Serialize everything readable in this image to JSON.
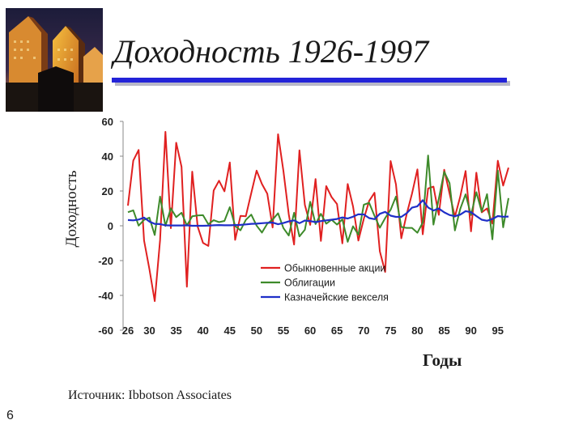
{
  "slide": {
    "title": "Доходность 1926-1997",
    "source": "Источник: Ibbotson Associates",
    "page_number": "6"
  },
  "colors": {
    "stocks": "#e02020",
    "bonds": "#3d8a2a",
    "bills": "#1f2fc8",
    "title_rule": "#2323d8"
  },
  "chart_data": {
    "type": "line",
    "ylabel": "Доходность",
    "xlabel": "Годы",
    "ylim": [
      -60,
      60
    ],
    "xlim": [
      1926,
      1997
    ],
    "y_ticks": [
      "60",
      "40",
      "20",
      "0",
      "-20",
      "-40",
      "-60"
    ],
    "x_ticks": [
      "26",
      "30",
      "35",
      "40",
      "45",
      "50",
      "55",
      "60",
      "65",
      "70",
      "75",
      "80",
      "85",
      "90",
      "95"
    ],
    "legend_position": "lower-right",
    "x": [
      1926,
      1927,
      1928,
      1929,
      1930,
      1931,
      1932,
      1933,
      1934,
      1935,
      1936,
      1937,
      1938,
      1939,
      1940,
      1941,
      1942,
      1943,
      1944,
      1945,
      1946,
      1947,
      1948,
      1949,
      1950,
      1951,
      1952,
      1953,
      1954,
      1955,
      1956,
      1957,
      1958,
      1959,
      1960,
      1961,
      1962,
      1963,
      1964,
      1965,
      1966,
      1967,
      1968,
      1969,
      1970,
      1971,
      1972,
      1973,
      1974,
      1975,
      1976,
      1977,
      1978,
      1979,
      1980,
      1981,
      1982,
      1983,
      1984,
      1985,
      1986,
      1987,
      1988,
      1989,
      1990,
      1991,
      1992,
      1993,
      1994,
      1995,
      1996,
      1997
    ],
    "series": [
      {
        "name": "Обыкновенные акции",
        "values": [
          11.6,
          37.5,
          43.6,
          -8.4,
          -24.9,
          -43.3,
          -8.2,
          54.0,
          -1.4,
          47.7,
          33.9,
          -35.0,
          31.1,
          -0.4,
          -9.8,
          -11.6,
          20.3,
          25.9,
          19.8,
          36.4,
          -8.1,
          5.7,
          5.5,
          18.8,
          31.7,
          24.0,
          18.4,
          -1.0,
          52.6,
          31.6,
          6.6,
          -10.8,
          43.4,
          12.0,
          0.5,
          26.9,
          -8.7,
          22.8,
          16.5,
          12.5,
          -10.1,
          24.0,
          11.1,
          -8.5,
          4.0,
          14.3,
          19.0,
          -14.7,
          -26.5,
          37.2,
          23.8,
          -7.2,
          6.6,
          18.4,
          32.4,
          -4.9,
          21.4,
          22.5,
          6.3,
          32.2,
          18.5,
          5.2,
          16.8,
          31.5,
          -3.2,
          30.5,
          7.7,
          10.0,
          1.3,
          37.4,
          23.1,
          33.4
        ]
      },
      {
        "name": "Облигации",
        "values": [
          7.8,
          8.9,
          0.1,
          3.4,
          4.7,
          -5.3,
          16.8,
          -0.1,
          10.0,
          5.0,
          7.5,
          0.2,
          5.5,
          5.9,
          6.1,
          0.9,
          3.2,
          2.1,
          2.8,
          10.7,
          -0.1,
          -2.6,
          3.4,
          6.4,
          0.1,
          -3.9,
          1.2,
          3.6,
          7.2,
          -1.3,
          -5.6,
          7.5,
          -6.1,
          -2.3,
          13.8,
          1.0,
          6.9,
          1.2,
          3.5,
          0.7,
          3.7,
          -9.2,
          -0.3,
          -5.1,
          12.1,
          13.2,
          5.7,
          -1.1,
          4.4,
          9.2,
          16.8,
          -0.7,
          -1.2,
          -1.2,
          -4.0,
          1.9,
          40.4,
          0.7,
          15.5,
          31.0,
          24.5,
          -2.7,
          9.7,
          18.1,
          6.2,
          19.3,
          8.1,
          18.2,
          -7.8,
          31.7,
          -0.9,
          15.9
        ]
      },
      {
        "name": "Казначейские векселя",
        "values": [
          3.3,
          3.1,
          3.6,
          4.7,
          2.4,
          1.1,
          1.0,
          0.3,
          0.2,
          0.2,
          0.2,
          0.3,
          0.0,
          0.0,
          0.0,
          0.1,
          0.3,
          0.4,
          0.3,
          0.3,
          0.4,
          0.5,
          0.8,
          1.1,
          1.2,
          1.5,
          1.7,
          1.8,
          0.9,
          1.6,
          2.5,
          3.1,
          1.5,
          3.0,
          2.7,
          2.1,
          2.7,
          3.1,
          3.5,
          3.9,
          4.8,
          4.2,
          5.2,
          6.6,
          6.5,
          4.4,
          3.8,
          6.9,
          8.0,
          5.8,
          5.1,
          5.1,
          7.2,
          10.4,
          11.2,
          14.7,
          10.5,
          8.8,
          9.9,
          7.7,
          6.2,
          5.5,
          6.4,
          8.4,
          7.8,
          5.6,
          3.5,
          2.9,
          3.9,
          5.6,
          5.2,
          5.3
        ]
      }
    ]
  }
}
